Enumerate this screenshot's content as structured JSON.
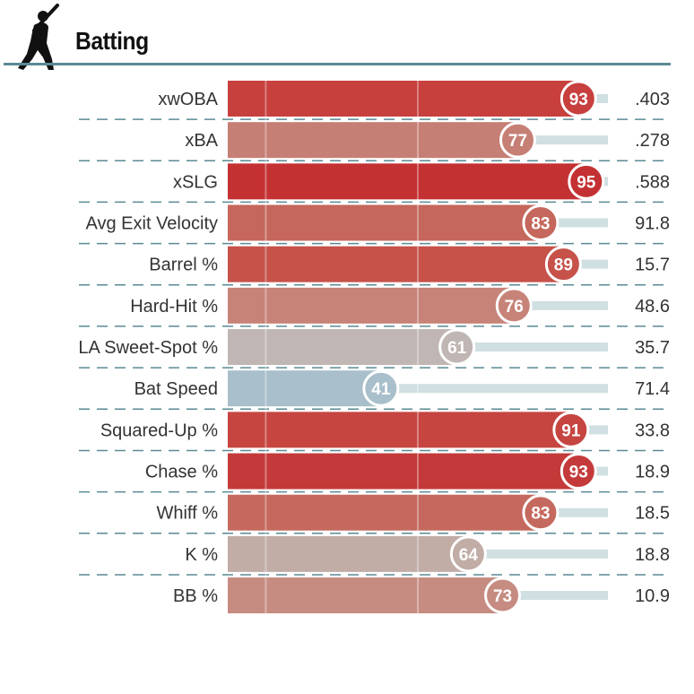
{
  "header": {
    "title": "Batting",
    "icon": "batter-silhouette-icon",
    "rule_color": "#5a8a94"
  },
  "chart_data": {
    "type": "bar",
    "orientation": "horizontal",
    "title": "Batting",
    "xlim": [
      0,
      100
    ],
    "reference_lines": [
      10,
      50
    ],
    "categories": [
      "xwOBA",
      "xBA",
      "xSLG",
      "Avg Exit Velocity",
      "Barrel %",
      "Hard-Hit %",
      "LA Sweet-Spot %",
      "Bat Speed",
      "Squared-Up %",
      "Chase %",
      "Whiff %",
      "K %",
      "BB %"
    ],
    "percentiles": [
      93,
      77,
      95,
      83,
      89,
      76,
      61,
      41,
      91,
      93,
      83,
      64,
      73
    ],
    "values": [
      ".403",
      ".278",
      ".588",
      "91.8",
      "15.7",
      "48.6",
      "35.7",
      "71.4",
      "33.8",
      "18.9",
      "18.5",
      "18.8",
      "10.9"
    ],
    "colors": [
      "#c7403e",
      "#c67f74",
      "#c43133",
      "#c5675c",
      "#c6524a",
      "#c78378",
      "#c0b6b3",
      "#a9bfcb",
      "#c64541",
      "#c43a3a",
      "#c5695e",
      "#c1aca6",
      "#c68c81"
    ],
    "track_color": "#d0dfe1",
    "grid": false
  }
}
